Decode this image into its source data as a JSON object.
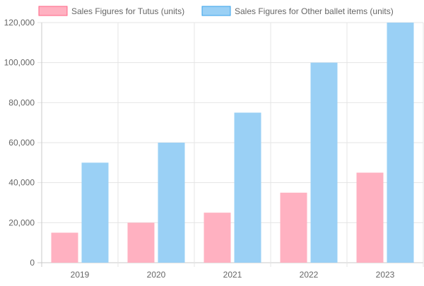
{
  "chart_data": {
    "type": "bar",
    "categories": [
      "2019",
      "2020",
      "2021",
      "2022",
      "2023"
    ],
    "series": [
      {
        "name": "Sales Figures for Tutus (units)",
        "values": [
          15000,
          20000,
          25000,
          35000,
          45000
        ],
        "color": "#ffb1c1",
        "border_color": "#ff6384"
      },
      {
        "name": "Sales Figures for Other ballet items (units)",
        "values": [
          50000,
          60000,
          75000,
          100000,
          120000
        ],
        "color": "#9ad0f5",
        "border_color": "#36a2eb"
      }
    ],
    "ylim": [
      0,
      120000
    ],
    "y_ticks": [
      0,
      20000,
      40000,
      60000,
      80000,
      100000,
      120000
    ],
    "y_tick_labels": [
      "0",
      "20,000",
      "40,000",
      "60,000",
      "80,000",
      "100,000",
      "120,000"
    ],
    "grid": true,
    "legend_position": "top",
    "title": "",
    "xlabel": "",
    "ylabel": ""
  }
}
